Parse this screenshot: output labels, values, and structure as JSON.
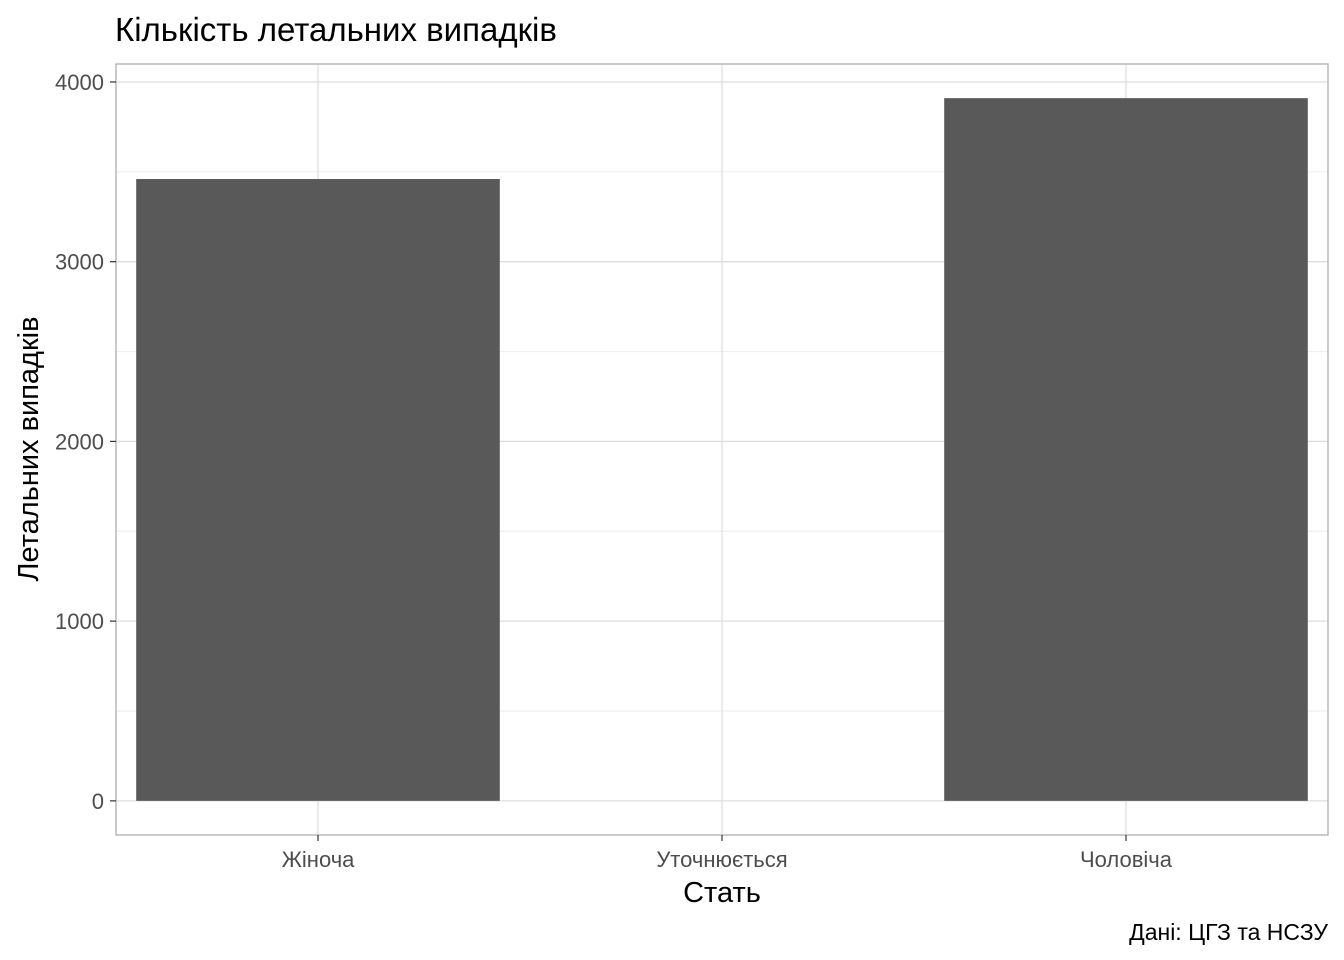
{
  "chart_data": {
    "type": "bar",
    "title": "Кількість летальних випадків",
    "xlabel": "Стать",
    "ylabel": "Летальних випадків",
    "caption": "Дані: ЦГЗ та НСЗУ",
    "categories": [
      "Жіноча",
      "Уточнюється",
      "Чоловіча"
    ],
    "values": [
      3460,
      0,
      3910
    ],
    "ylim": [
      -190,
      4100
    ],
    "yticks": [
      0,
      1000,
      2000,
      3000,
      4000
    ],
    "grid": true,
    "legend": "none",
    "colors": {
      "bar": "#595959",
      "grid_major": "#dedede",
      "grid_minor": "#efefef",
      "panel_border": "#b3b3b3"
    }
  }
}
